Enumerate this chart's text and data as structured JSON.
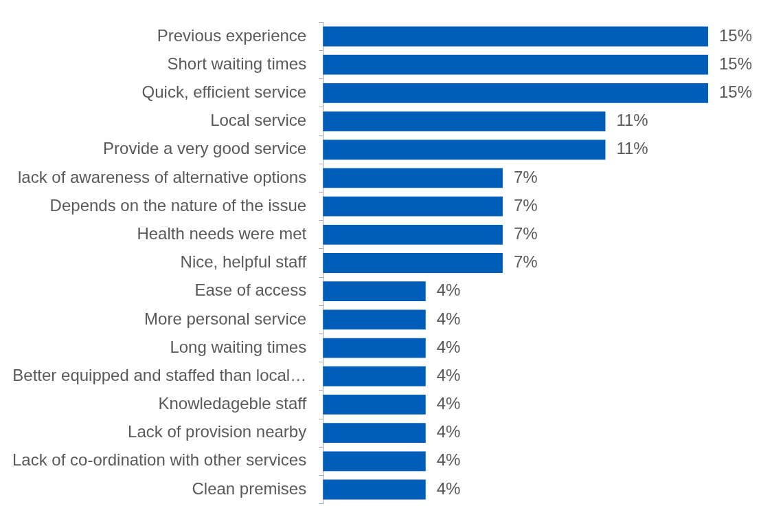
{
  "chart_data": {
    "type": "bar",
    "orientation": "horizontal",
    "categories": [
      "Previous experience",
      "Short waiting times",
      "Quick, efficient service",
      "Local service",
      "Provide a very good service",
      "lack of awareness of alternative options",
      "Depends on the nature of the issue",
      "Health needs were met",
      "Nice, helpful staff",
      "Ease of access",
      "More personal service",
      "Long waiting times",
      "Better equipped and staffed than local…",
      "Knowledageble staff",
      "Lack of provision nearby",
      "Lack of co-ordination with other services",
      "Clean premises"
    ],
    "values": [
      15,
      15,
      15,
      11,
      11,
      7,
      7,
      7,
      7,
      4,
      4,
      4,
      4,
      4,
      4,
      4,
      4
    ],
    "value_labels": [
      "15%",
      "15%",
      "15%",
      "11%",
      "11%",
      "7%",
      "7%",
      "7%",
      "7%",
      "4%",
      "4%",
      "4%",
      "4%",
      "4%",
      "4%",
      "4%",
      "4%"
    ],
    "color": "#005eb8"
  }
}
